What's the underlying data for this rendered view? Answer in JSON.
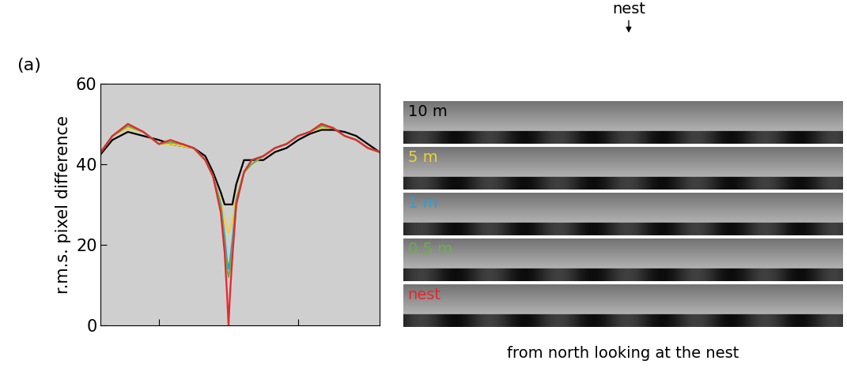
{
  "chart_data": {
    "type": "line",
    "panel_label": "(a)",
    "y_label": "r.m.s. pixel difference",
    "x": [
      -165,
      -150,
      -130,
      -110,
      -90,
      -75,
      -60,
      -45,
      -30,
      -20,
      -10,
      -5,
      -2,
      0,
      2,
      5,
      10,
      20,
      30,
      45,
      60,
      75,
      90,
      105,
      120,
      135,
      150,
      165,
      180,
      195
    ],
    "series": [
      {
        "name": "10 m",
        "color": "#000000",
        "values": [
          42.5,
          46,
          48,
          47,
          46,
          45,
          44.5,
          44,
          42,
          38,
          33,
          30,
          30,
          30,
          30,
          30,
          35,
          41,
          41,
          41,
          43,
          44,
          46,
          47.5,
          48.5,
          48.5,
          48,
          47,
          45,
          43
        ]
      },
      {
        "name": "5 m",
        "color": "#f2d22e",
        "values": [
          43,
          47,
          49,
          48,
          45,
          45,
          44.5,
          44,
          41,
          37,
          31,
          26,
          24,
          23,
          24,
          26,
          32,
          38,
          40,
          42,
          44,
          45,
          47,
          48,
          49,
          49,
          47,
          46,
          44,
          43
        ]
      },
      {
        "name": "1 m",
        "color": "#2a9fd6",
        "values": [
          43,
          47,
          49.5,
          48,
          45,
          45.5,
          45,
          44,
          41,
          37,
          30,
          22,
          16,
          14,
          16,
          21,
          31,
          38,
          41,
          42,
          44,
          45,
          47,
          48,
          49.5,
          49,
          47,
          46,
          44,
          43
        ]
      },
      {
        "name": "0.5 m",
        "color": "#6ab04c",
        "values": [
          43,
          47,
          49.5,
          48,
          45,
          45.5,
          45,
          44,
          41,
          37,
          29,
          20,
          14,
          12,
          14,
          19,
          30,
          38,
          40,
          42,
          44,
          45,
          47,
          48,
          49.5,
          49,
          47,
          46,
          44,
          43
        ]
      },
      {
        "name": "nest",
        "color": "#e8262a",
        "values": [
          43,
          47,
          50,
          48,
          45,
          46,
          45,
          44,
          41,
          37,
          28,
          18,
          8,
          0,
          8,
          17,
          30,
          38,
          41,
          42,
          44,
          45,
          47,
          48,
          50,
          49,
          47,
          46,
          44,
          43
        ]
      }
    ],
    "xlim": [
      -165,
      195
    ],
    "xticks": [
      -90,
      0,
      90
    ],
    "ylim": [
      0,
      60
    ],
    "yticks": [
      0,
      20,
      40,
      60
    ],
    "tick_labels": "y"
  },
  "panorama": {
    "marker_label": "nest",
    "caption": "from north looking at the nest"
  }
}
